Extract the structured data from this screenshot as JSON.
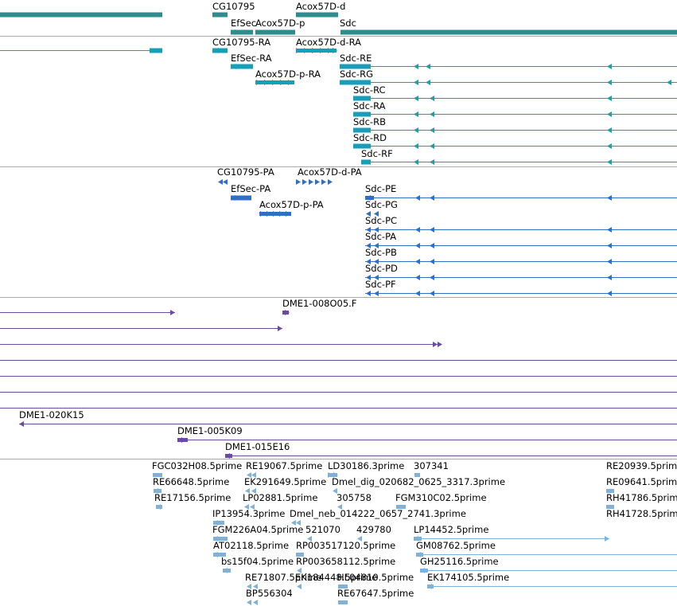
{
  "colors": {
    "gene": "#2e8b8e",
    "transcript_mrna": "#14a0b6",
    "protein_coding": "#2f6fc4",
    "clone": "#6a4aa5",
    "est": "#7fb1d9",
    "divider": "#a8a8a8"
  },
  "tracks": [
    {
      "id": "gene-track",
      "features": [
        {
          "name": "gene-unlabeled-left",
          "label": ""
        },
        {
          "name": "gene-cg10795",
          "label": "CG10795"
        },
        {
          "name": "gene-acox57d-d",
          "label": "Acox57D-d"
        },
        {
          "name": "gene-efsec",
          "label": "EfSec"
        },
        {
          "name": "gene-acox57d-p",
          "label": "Acox57D-p"
        },
        {
          "name": "gene-sdc",
          "label": "Sdc"
        }
      ]
    },
    {
      "id": "transcript-track",
      "features": [
        {
          "name": "transcript-unlabeled-left",
          "label": ""
        },
        {
          "name": "transcript-cg10795-ra",
          "label": "CG10795-RA"
        },
        {
          "name": "transcript-acox57d-d-ra",
          "label": "Acox57D-d-RA"
        },
        {
          "name": "transcript-efsec-ra",
          "label": "EfSec-RA"
        },
        {
          "name": "transcript-sdc-re",
          "label": "Sdc-RE"
        },
        {
          "name": "transcript-acox57d-p-ra",
          "label": "Acox57D-p-RA"
        },
        {
          "name": "transcript-sdc-rg",
          "label": "Sdc-RG"
        },
        {
          "name": "transcript-sdc-rc",
          "label": "Sdc-RC"
        },
        {
          "name": "transcript-sdc-ra",
          "label": "Sdc-RA"
        },
        {
          "name": "transcript-sdc-rb",
          "label": "Sdc-RB"
        },
        {
          "name": "transcript-sdc-rd",
          "label": "Sdc-RD"
        },
        {
          "name": "transcript-sdc-rf",
          "label": "Sdc-RF"
        }
      ]
    },
    {
      "id": "protein-track",
      "features": [
        {
          "name": "protein-cg10795-pa",
          "label": "CG10795-PA"
        },
        {
          "name": "protein-acox57d-d-pa",
          "label": "Acox57D-d-PA"
        },
        {
          "name": "protein-efsec-pa",
          "label": "EfSec-PA"
        },
        {
          "name": "protein-sdc-pe",
          "label": "Sdc-PE"
        },
        {
          "name": "protein-acox57d-p-pa",
          "label": "Acox57D-p-PA"
        },
        {
          "name": "protein-sdc-pg",
          "label": "Sdc-PG"
        },
        {
          "name": "protein-sdc-pc",
          "label": "Sdc-PC"
        },
        {
          "name": "protein-sdc-pa",
          "label": "Sdc-PA"
        },
        {
          "name": "protein-sdc-pb",
          "label": "Sdc-PB"
        },
        {
          "name": "protein-sdc-pd",
          "label": "Sdc-PD"
        },
        {
          "name": "protein-sdc-pf",
          "label": "Sdc-PF"
        }
      ]
    },
    {
      "id": "clone-track",
      "features": [
        {
          "name": "clone-unlabeled-1",
          "label": ""
        },
        {
          "name": "clone-dme1-008o05-f",
          "label": "DME1-008O05.F"
        },
        {
          "name": "clone-unlabeled-2",
          "label": ""
        },
        {
          "name": "clone-unlabeled-3",
          "label": ""
        },
        {
          "name": "clone-unlabeled-4",
          "label": ""
        },
        {
          "name": "clone-unlabeled-5",
          "label": ""
        },
        {
          "name": "clone-unlabeled-6",
          "label": ""
        },
        {
          "name": "clone-unlabeled-7",
          "label": ""
        },
        {
          "name": "clone-dme1-020k15",
          "label": "DME1-020K15"
        },
        {
          "name": "clone-dme1-005k09",
          "label": "DME1-005K09"
        },
        {
          "name": "clone-dme1-015e16",
          "label": "DME1-015E16"
        }
      ]
    },
    {
      "id": "est-track",
      "features": [
        {
          "name": "est-fgc032h08",
          "label": "FGC032H08.5prime"
        },
        {
          "name": "est-re19067",
          "label": "RE19067.5prime"
        },
        {
          "name": "est-ld30186",
          "label": "LD30186.3prime"
        },
        {
          "name": "est-307341",
          "label": "307341"
        },
        {
          "name": "est-re20939",
          "label": "RE20939.5prime"
        },
        {
          "name": "est-re66648",
          "label": "RE66648.5prime"
        },
        {
          "name": "est-ek291649",
          "label": "EK291649.5prime"
        },
        {
          "name": "est-dmel-dig-020682",
          "label": "Dmel_dig_020682_0625_3317.3prime"
        },
        {
          "name": "est-re09641",
          "label": "RE09641.5prime"
        },
        {
          "name": "est-re17156",
          "label": "RE17156.5prime"
        },
        {
          "name": "est-lp02881",
          "label": "LP02881.5prime"
        },
        {
          "name": "est-305758",
          "label": "305758"
        },
        {
          "name": "est-fgm310c02",
          "label": "FGM310C02.5prime"
        },
        {
          "name": "est-rh41786",
          "label": "RH41786.5prime"
        },
        {
          "name": "est-ip13954",
          "label": "IP13954.3prime"
        },
        {
          "name": "est-dmel-neb-014222",
          "label": "Dmel_neb_014222_0657_2741.3prime"
        },
        {
          "name": "est-rh41728",
          "label": "RH41728.5prime"
        },
        {
          "name": "est-fgm226a04",
          "label": "FGM226A04.5prime"
        },
        {
          "name": "est-521070",
          "label": "521070"
        },
        {
          "name": "est-429780",
          "label": "429780"
        },
        {
          "name": "est-lp14452",
          "label": "LP14452.5prime"
        },
        {
          "name": "est-at02118",
          "label": "AT02118.5prime"
        },
        {
          "name": "est-rp003517120",
          "label": "RP003517120.5prime"
        },
        {
          "name": "est-gm08762",
          "label": "GM08762.5prime"
        },
        {
          "name": "est-bs15f04",
          "label": "bs15f04.5prime"
        },
        {
          "name": "est-rp003658112",
          "label": "RP003658112.5prime"
        },
        {
          "name": "est-gh25116",
          "label": "GH25116.5prime"
        },
        {
          "name": "est-re71807",
          "label": "RE71807.5prime"
        },
        {
          "name": "est-ek184448",
          "label": "EK184448.5prime"
        },
        {
          "name": "est-hl04810",
          "label": "HL04810.5prime"
        },
        {
          "name": "est-ek174105",
          "label": "EK174105.5prime"
        },
        {
          "name": "est-bp556304",
          "label": "BP556304"
        },
        {
          "name": "est-re67647",
          "label": "RE67647.5prime"
        }
      ]
    }
  ]
}
